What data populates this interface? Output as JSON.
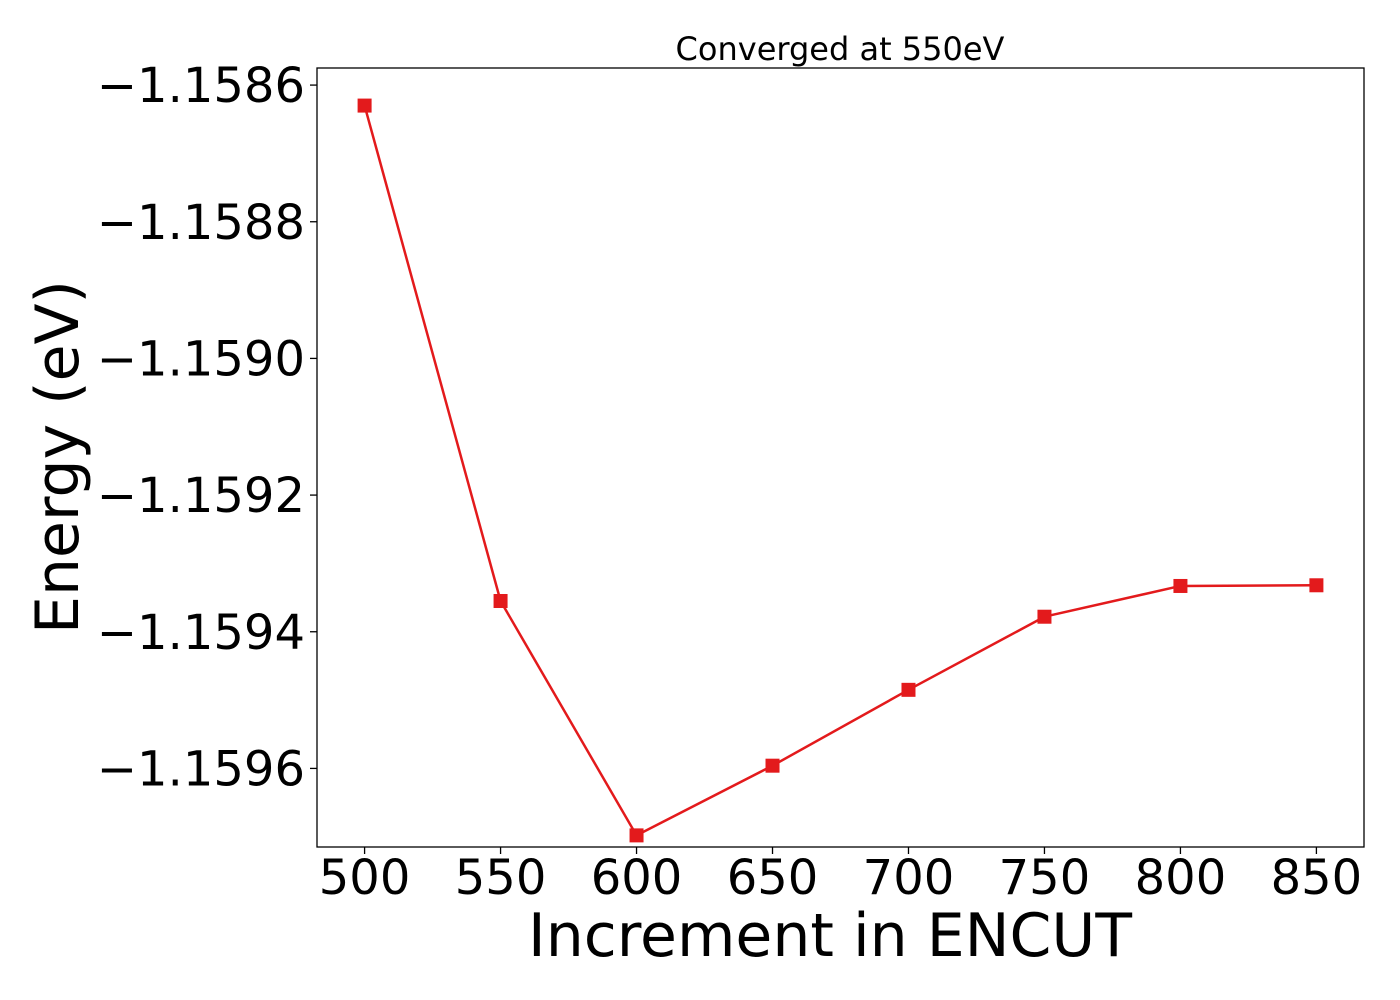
{
  "chart_data": {
    "type": "line",
    "title": "Converged at 550eV",
    "xlabel": "Increment in ENCUT",
    "ylabel": "Energy (eV)",
    "x": [
      500,
      550,
      600,
      650,
      700,
      750,
      800,
      850
    ],
    "series": [
      {
        "values": [
          -1.15863,
          -1.159355,
          -1.159698,
          -1.159596,
          -1.159485,
          -1.159378,
          -1.159333,
          -1.159332
        ],
        "color": "#e31a1c",
        "marker": "square"
      }
    ],
    "xticks": [
      500,
      550,
      600,
      650,
      700,
      750,
      800,
      850
    ],
    "xtick_labels": [
      "500",
      "550",
      "600",
      "650",
      "700",
      "750",
      "800",
      "850"
    ],
    "yticks": [
      -1.1586,
      -1.1588,
      -1.159,
      -1.1592,
      -1.1594,
      -1.1596
    ],
    "ytick_labels": [
      "−1.1586",
      "−1.1588",
      "−1.1590",
      "−1.1592",
      "−1.1594",
      "−1.1596"
    ],
    "xlim": [
      482.5,
      867.5
    ],
    "ylim": [
      -1.159715,
      -1.158575
    ],
    "grid": false,
    "legend": false
  }
}
